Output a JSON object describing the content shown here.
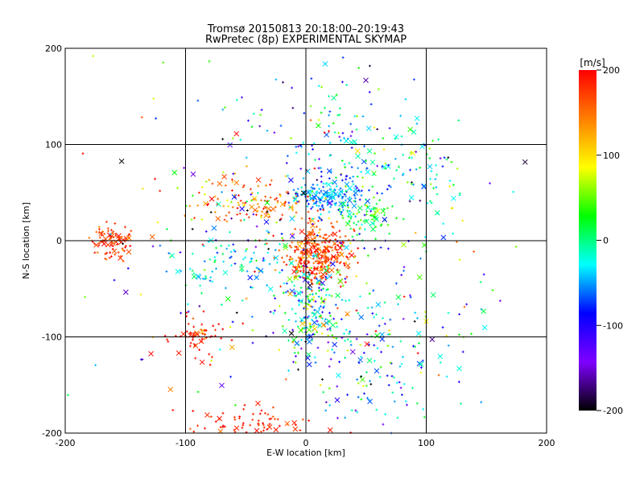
{
  "chart_data": {
    "type": "scatter",
    "title": "Tromsø 20150813 20:18:00–20:19:43",
    "subtitle": "RwPretec (8p) EXPERIMENTAL SKYMAP",
    "xlabel": "E-W location [km]",
    "ylabel": "N-S location [km]",
    "xlim": [
      -200,
      200
    ],
    "ylim": [
      -200,
      200
    ],
    "xticks": [
      "-200",
      "-100",
      "0",
      "100",
      "200"
    ],
    "yticks": [
      "-200",
      "-100",
      "0",
      "100",
      "200"
    ],
    "grid": true,
    "colorbar": {
      "label": "[m/s]",
      "range": [
        -200,
        200
      ],
      "ticks": [
        "200",
        "100",
        "0",
        "-100",
        "-200"
      ],
      "colors": [
        "#000000",
        "#7f00ff",
        "#0000ff",
        "#00ffff",
        "#00ff00",
        "#ffff00",
        "#ff7f00",
        "#ff0000"
      ]
    },
    "markers": {
      "cross": "×",
      "dot": "+"
    },
    "clusters": [
      {
        "cx": -160,
        "cy": 0,
        "sx": 8,
        "sy": 10,
        "n": 90,
        "vmean": 180,
        "vsd": 20
      },
      {
        "cx": 10,
        "cy": -15,
        "sx": 14,
        "sy": 16,
        "n": 320,
        "vmean": 170,
        "vsd": 30
      },
      {
        "cx": 20,
        "cy": 45,
        "sx": 14,
        "sy": 8,
        "n": 150,
        "vmean": -50,
        "vsd": 20
      },
      {
        "cx": 50,
        "cy": 25,
        "sx": 12,
        "sy": 8,
        "n": 70,
        "vmean": 20,
        "vsd": 20
      },
      {
        "cx": 5,
        "cy": -70,
        "sx": 12,
        "sy": 25,
        "n": 180,
        "vmean": -20,
        "vsd": 70
      },
      {
        "cx": -40,
        "cy": 40,
        "sx": 30,
        "sy": 12,
        "n": 120,
        "vmean": 150,
        "vsd": 40
      },
      {
        "cx": -90,
        "cy": -100,
        "sx": 12,
        "sy": 10,
        "n": 60,
        "vmean": 185,
        "vsd": 15
      },
      {
        "cx": -40,
        "cy": -190,
        "sx": 25,
        "sy": 8,
        "n": 70,
        "vmean": 185,
        "vsd": 15
      },
      {
        "cx": 30,
        "cy": 80,
        "sx": 40,
        "sy": 40,
        "n": 180,
        "vmean": -40,
        "vsd": 80
      },
      {
        "cx": 60,
        "cy": -120,
        "sx": 35,
        "sy": 40,
        "n": 160,
        "vmean": -40,
        "vsd": 60
      },
      {
        "cx": 0,
        "cy": 0,
        "sx": 90,
        "sy": 90,
        "n": 300,
        "vmean": 0,
        "vsd": 110
      },
      {
        "cx": -60,
        "cy": -20,
        "sx": 25,
        "sy": 15,
        "n": 90,
        "vmean": -30,
        "vsd": 30
      },
      {
        "cx": 100,
        "cy": 70,
        "sx": 20,
        "sy": 20,
        "n": 50,
        "vmean": -20,
        "vsd": 40
      }
    ]
  }
}
